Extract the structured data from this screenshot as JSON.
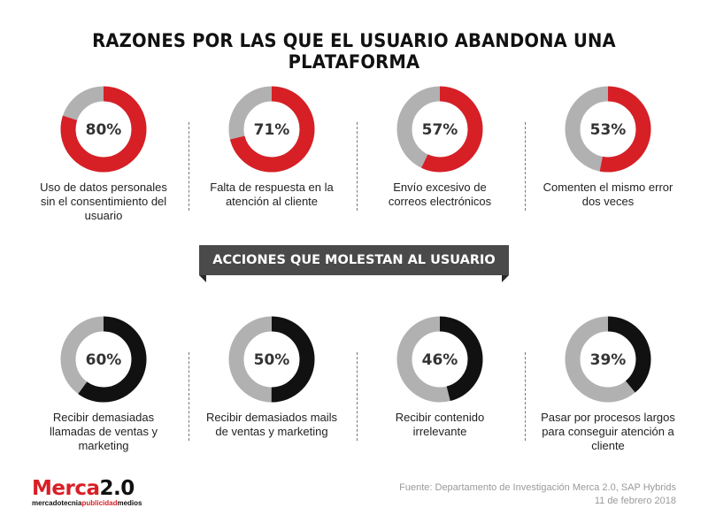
{
  "title": "RAZONES POR LAS QUE EL USUARIO ABANDONA UNA PLATAFORMA",
  "banner": "ACCIONES QUE MOLESTAN AL USUARIO",
  "colors": {
    "accent_red": "#d71f26",
    "accent_black": "#111111",
    "track_gray": "#b1b1b1"
  },
  "chart_data": [
    {
      "type": "pie",
      "title": "RAZONES POR LAS QUE EL USUARIO ABANDONA UNA PLATAFORMA",
      "items": [
        {
          "label": "Uso de datos personales sin el consentimiento del usuario",
          "value": 80,
          "display": "80%"
        },
        {
          "label": "Falta de respuesta en la atención al cliente",
          "value": 71,
          "display": "71%"
        },
        {
          "label": "Envío excesivo de correos electrónicos",
          "value": 57,
          "display": "57%"
        },
        {
          "label": "Comenten el mismo error dos veces",
          "value": 53,
          "display": "53%"
        }
      ]
    },
    {
      "type": "pie",
      "title": "ACCIONES QUE MOLESTAN AL USUARIO",
      "items": [
        {
          "label": "Recibir demasiadas llamadas de ventas y marketing",
          "value": 60,
          "display": "60%"
        },
        {
          "label": "Recibir demasiados mails de ventas y marketing",
          "value": 50,
          "display": "50%"
        },
        {
          "label": "Recibir contenido irrelevante",
          "value": 46,
          "display": "46%"
        },
        {
          "label": "Pasar por procesos largos para conseguir atención a cliente",
          "value": 39,
          "display": "39%"
        }
      ]
    }
  ],
  "logo": {
    "brand": "Merca",
    "version": "2.0",
    "tagline_a": "mercadotecnia",
    "tagline_b": "publicidad",
    "tagline_c": "medios"
  },
  "source": {
    "line1": "Fuente: Departamento de Investigación Merca 2.0, SAP Hybrids",
    "line2": "11 de febrero 2018"
  }
}
